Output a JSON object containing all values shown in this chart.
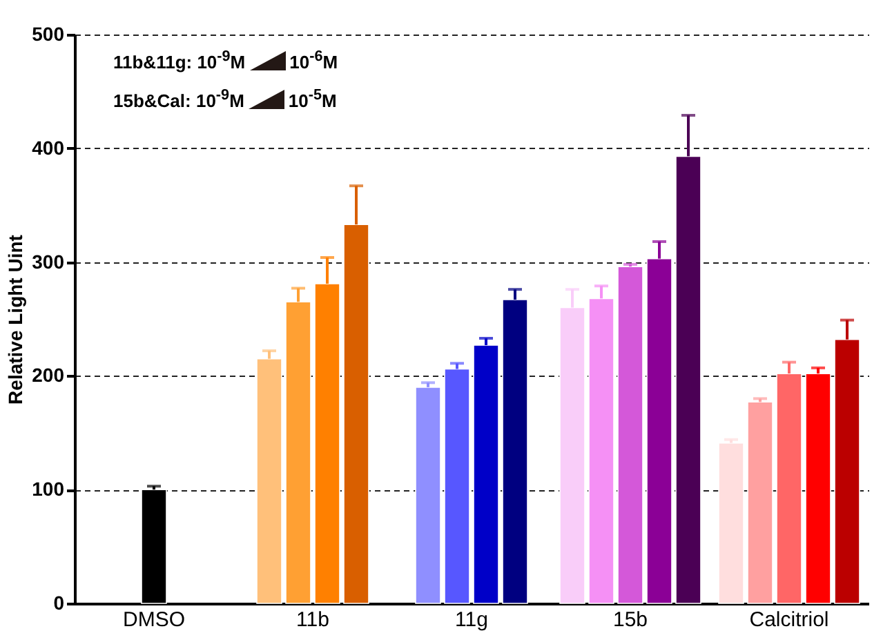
{
  "chart_data": {
    "type": "bar",
    "ylabel": "Relative Light Uint",
    "categories": [
      "DMSO",
      "11b",
      "11g",
      "15b",
      "Calcitriol"
    ],
    "series": [
      {
        "values": [
          100,
          215,
          190,
          260,
          141
        ],
        "colors": [
          "#000000",
          "#ffc07a",
          "#8f8fff",
          "#f9cdf9",
          "#ffdede"
        ],
        "errors": [
          [
            100,
            103
          ],
          [
            215,
            222
          ],
          [
            190,
            194
          ],
          [
            260,
            276
          ],
          [
            141,
            144
          ]
        ]
      },
      {
        "values": [
          null,
          265,
          206,
          268,
          177
        ],
        "colors": [
          null,
          "#ffa033",
          "#5757ff",
          "#f590f5",
          "#ffa0a0"
        ],
        "errors": [
          null,
          [
            265,
            277
          ],
          [
            206,
            211
          ],
          [
            268,
            279
          ],
          [
            177,
            180
          ]
        ]
      },
      {
        "values": [
          null,
          281,
          227,
          296,
          202
        ],
        "colors": [
          null,
          "#ff8000",
          "#0000c8",
          "#d458d9",
          "#ff6666"
        ],
        "errors": [
          null,
          [
            281,
            304
          ],
          [
            227,
            233
          ],
          [
            296,
            298
          ],
          [
            202,
            212
          ]
        ]
      },
      {
        "values": [
          null,
          333,
          267,
          303,
          202
        ],
        "colors": [
          null,
          "#d95f00",
          "#000080",
          "#8b0096",
          "#ff0000"
        ],
        "errors": [
          null,
          [
            333,
            367
          ],
          [
            267,
            276
          ],
          [
            303,
            318
          ],
          [
            202,
            207
          ]
        ]
      },
      {
        "values": [
          null,
          null,
          null,
          393,
          232
        ],
        "colors": [
          null,
          null,
          null,
          "#4b0055",
          "#bb0000"
        ],
        "errors": [
          null,
          null,
          null,
          [
            393,
            429
          ],
          [
            232,
            249
          ]
        ]
      }
    ],
    "ylim": [
      0,
      500
    ],
    "yticks": [
      0,
      100,
      200,
      300,
      400,
      500
    ],
    "grid": "y",
    "annotations": [
      "11b&11g: 10$^{-9}$M",
      "10$^{-6}$M",
      "15b&Cal: 10$^{-9}$M",
      "10$^{-5}$M"
    ]
  }
}
